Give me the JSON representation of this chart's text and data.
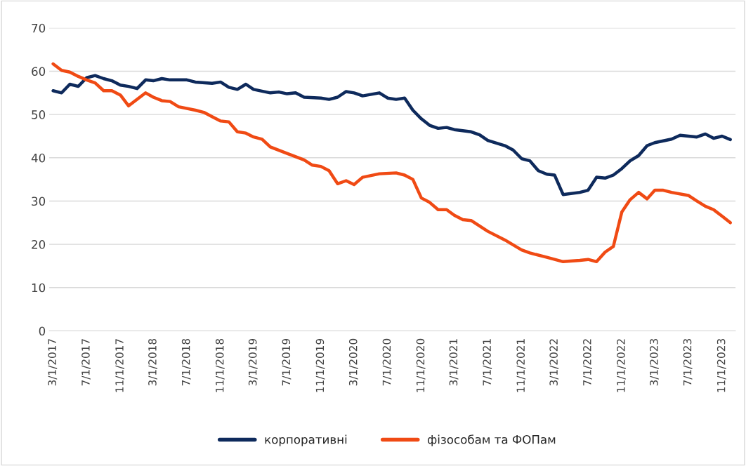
{
  "chart_data": {
    "type": "line",
    "series": [
      {
        "name": "корпоративні",
        "color": "#0e2a5c",
        "x": [
          "2017-03",
          "2017-04",
          "2017-05",
          "2017-06",
          "2017-07",
          "2017-08",
          "2017-09",
          "2017-10",
          "2017-11",
          "2017-12",
          "2018-01",
          "2018-02",
          "2018-03",
          "2018-04",
          "2018-05",
          "2018-07",
          "2018-08",
          "2018-10",
          "2018-11",
          "2018-12",
          "2019-01",
          "2019-02",
          "2019-03",
          "2019-05",
          "2019-06",
          "2019-07",
          "2019-08",
          "2019-09",
          "2019-11",
          "2019-12",
          "2020-01",
          "2020-02",
          "2020-03",
          "2020-04",
          "2020-06",
          "2020-07",
          "2020-08",
          "2020-09",
          "2020-10",
          "2020-11",
          "2020-12",
          "2021-01",
          "2021-02",
          "2021-03",
          "2021-05",
          "2021-06",
          "2021-07",
          "2021-09",
          "2021-10",
          "2021-11",
          "2021-12",
          "2022-01",
          "2022-02",
          "2022-03",
          "2022-04",
          "2022-06",
          "2022-07",
          "2022-08",
          "2022-09",
          "2022-10",
          "2022-11",
          "2022-12",
          "2023-01",
          "2023-02",
          "2023-03",
          "2023-05",
          "2023-06",
          "2023-08",
          "2023-09",
          "2023-10",
          "2023-11",
          "2023-12"
        ],
        "values": [
          55.5,
          55,
          57,
          56.5,
          58.5,
          59,
          58.3,
          57.8,
          56.8,
          56.5,
          56,
          58,
          57.8,
          58.3,
          58,
          58,
          57.5,
          57.2,
          57.5,
          56.3,
          55.8,
          57,
          55.8,
          55,
          55.2,
          54.8,
          55,
          54,
          53.8,
          53.5,
          54,
          55.3,
          55,
          54.3,
          55,
          53.8,
          53.5,
          53.8,
          51,
          49,
          47.5,
          46.8,
          47,
          46.5,
          46,
          45.3,
          44,
          42.8,
          41.8,
          39.8,
          39.3,
          37,
          36.2,
          36,
          31.5,
          32,
          32.5,
          35.5,
          35.3,
          36,
          37.5,
          39.3,
          40.5,
          42.8,
          43.5,
          44.3,
          45.2,
          44.8,
          45.5,
          44.5,
          45,
          44.2
        ]
      },
      {
        "name": "фізособам та ФОПам",
        "color": "#f04a14",
        "x": [
          "2017-03",
          "2017-04",
          "2017-05",
          "2017-06",
          "2017-07",
          "2017-08",
          "2017-09",
          "2017-10",
          "2017-11",
          "2017-12",
          "2018-01",
          "2018-02",
          "2018-03",
          "2018-04",
          "2018-05",
          "2018-06",
          "2018-08",
          "2018-09",
          "2018-10",
          "2018-11",
          "2018-12",
          "2019-01",
          "2019-02",
          "2019-03",
          "2019-04",
          "2019-05",
          "2019-07",
          "2019-09",
          "2019-10",
          "2019-11",
          "2019-12",
          "2020-01",
          "2020-02",
          "2020-03",
          "2020-04",
          "2020-06",
          "2020-08",
          "2020-09",
          "2020-10",
          "2020-11",
          "2020-12",
          "2021-01",
          "2021-02",
          "2021-03",
          "2021-04",
          "2021-05",
          "2021-07",
          "2021-09",
          "2021-11",
          "2021-12",
          "2022-02",
          "2022-04",
          "2022-06",
          "2022-07",
          "2022-08",
          "2022-09",
          "2022-10",
          "2022-11",
          "2022-12",
          "2023-01",
          "2023-02",
          "2023-03",
          "2023-04",
          "2023-05",
          "2023-07",
          "2023-08",
          "2023-09",
          "2023-10",
          "2023-11",
          "2023-12"
        ],
        "values": [
          61.7,
          60.2,
          59.8,
          58.8,
          58,
          57.3,
          55.5,
          55.5,
          54.5,
          52,
          53.5,
          55,
          54,
          53.2,
          53,
          51.8,
          51,
          50.5,
          49.5,
          48.5,
          48.3,
          46,
          45.7,
          44.8,
          44.3,
          42.5,
          41,
          39.5,
          38.3,
          38,
          37,
          34,
          34.7,
          33.8,
          35.5,
          36.3,
          36.5,
          36,
          35,
          30.7,
          29.7,
          28,
          28,
          26.7,
          25.7,
          25.5,
          23,
          21,
          18.7,
          18,
          17,
          16,
          16.3,
          16.5,
          16,
          18.2,
          19.5,
          27.5,
          30.3,
          32,
          30.5,
          32.5,
          32.5,
          32,
          31.3,
          30,
          28.8,
          28,
          26.5,
          25
        ]
      }
    ],
    "xlim": [
      "2017-02-15",
      "2023-12-20"
    ],
    "xticks": [
      {
        "value": "2017-03-01",
        "label": "3/1/2017"
      },
      {
        "value": "2017-07-01",
        "label": "7/1/2017"
      },
      {
        "value": "2017-11-01",
        "label": "11/1/2017"
      },
      {
        "value": "2018-03-01",
        "label": "3/1/2018"
      },
      {
        "value": "2018-07-01",
        "label": "7/1/2018"
      },
      {
        "value": "2018-11-01",
        "label": "11/1/2018"
      },
      {
        "value": "2019-03-01",
        "label": "3/1/2019"
      },
      {
        "value": "2019-07-01",
        "label": "7/1/2019"
      },
      {
        "value": "2019-11-01",
        "label": "11/1/2019"
      },
      {
        "value": "2020-03-01",
        "label": "3/1/2020"
      },
      {
        "value": "2020-07-01",
        "label": "7/1/2020"
      },
      {
        "value": "2020-11-01",
        "label": "11/1/2020"
      },
      {
        "value": "2021-03-01",
        "label": "3/1/2021"
      },
      {
        "value": "2021-07-01",
        "label": "7/1/2021"
      },
      {
        "value": "2021-11-01",
        "label": "11/1/2021"
      },
      {
        "value": "2022-03-01",
        "label": "3/1/2022"
      },
      {
        "value": "2022-07-01",
        "label": "7/1/2022"
      },
      {
        "value": "2022-11-01",
        "label": "11/1/2022"
      },
      {
        "value": "2023-03-01",
        "label": "3/1/2023"
      },
      {
        "value": "2023-07-01",
        "label": "7/1/2023"
      },
      {
        "value": "2023-11-01",
        "label": "11/1/2023"
      }
    ],
    "ylim": [
      0,
      70
    ],
    "yticks": [
      0,
      10,
      20,
      30,
      40,
      50,
      60,
      70
    ],
    "grid": "y",
    "legend": "bottom",
    "line_style": "solid",
    "marker": "none"
  }
}
